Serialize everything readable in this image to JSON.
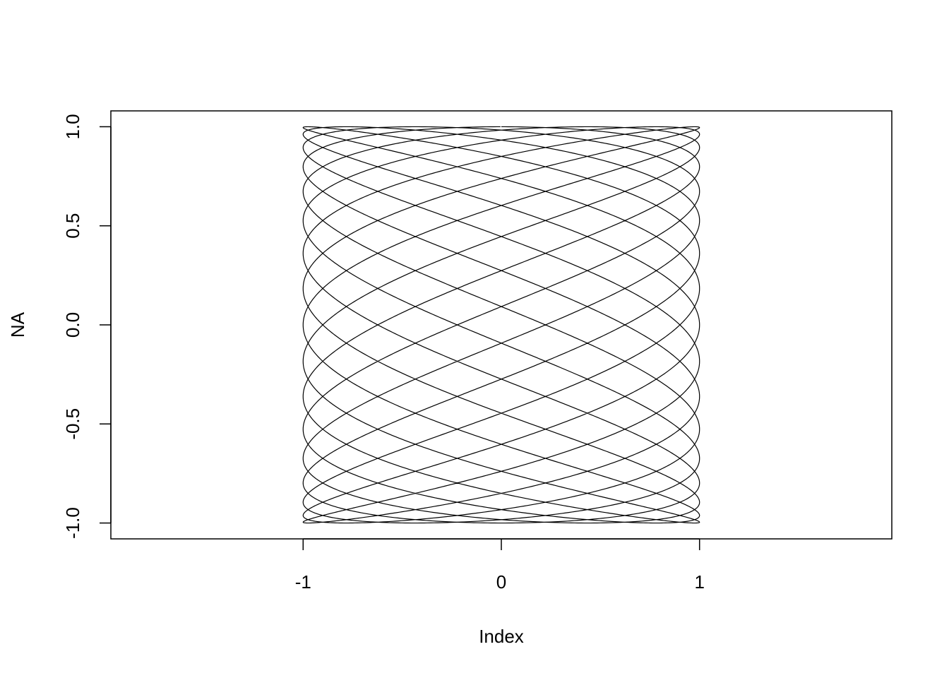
{
  "chart_data": {
    "type": "line",
    "title": "",
    "xlabel": "Index",
    "ylabel": "NA",
    "xlim": [
      -1.97,
      1.97
    ],
    "ylim": [
      -1.08,
      1.08
    ],
    "x_ticks": [
      -1,
      0,
      1
    ],
    "x_tick_labels": [
      "-1",
      "0",
      "1"
    ],
    "y_ticks": [
      -1.0,
      -0.5,
      0.0,
      0.5,
      1.0
    ],
    "y_tick_labels": [
      "-1.0",
      "-0.5",
      "0.0",
      "0.5",
      "1.0"
    ],
    "grid": false,
    "legend": "none",
    "line_color": "#000000",
    "series": [
      {
        "x_function": "sin(t)",
        "y_function": "cos(t*7/17)",
        "t_range": [
          0,
          106.81
        ],
        "samples": 6000
      }
    ]
  }
}
